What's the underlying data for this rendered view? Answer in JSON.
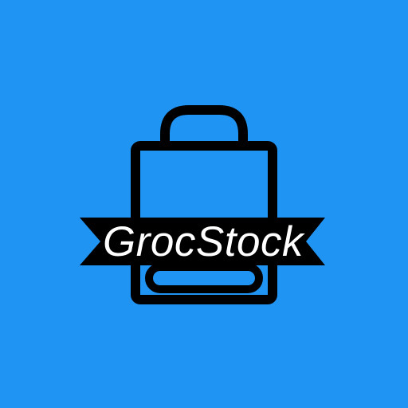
{
  "logo": {
    "brand_name": "GrocStock",
    "icon": "shopping-bag-icon",
    "colors": {
      "background": "#2094f3",
      "ink": "#000000",
      "text": "#ffffff"
    }
  }
}
